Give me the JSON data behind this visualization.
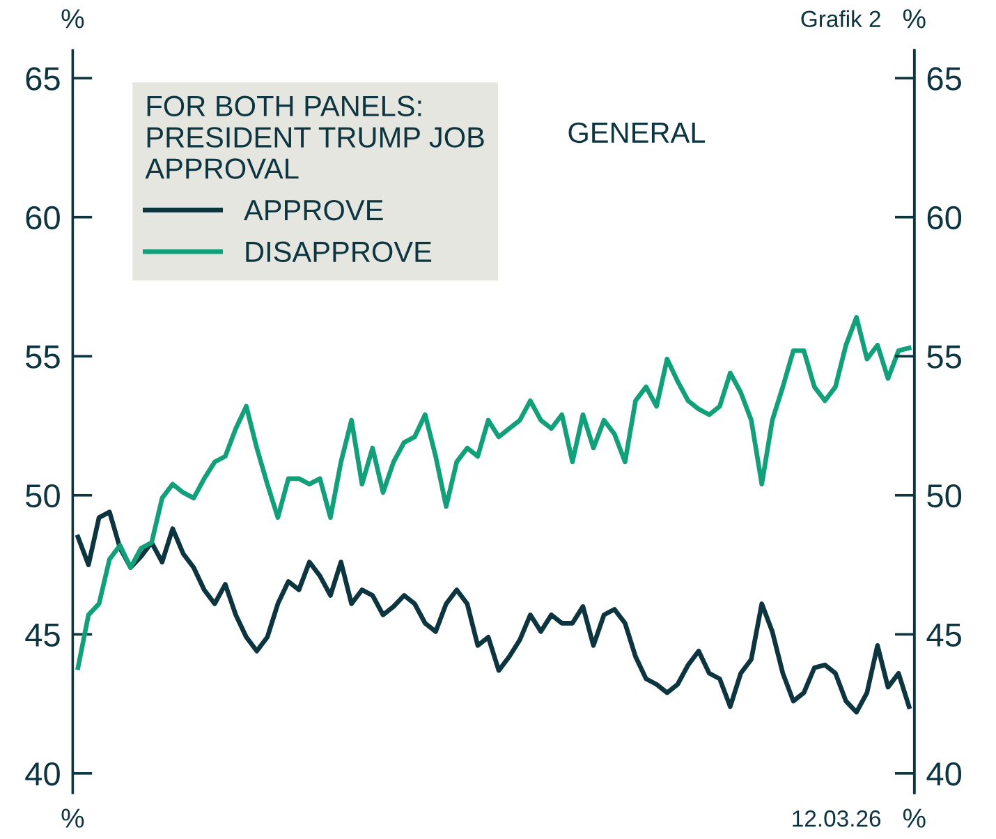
{
  "chart_data": {
    "type": "line",
    "title": "GENERAL",
    "ylabel": "%",
    "y2label": "%",
    "legend_title": "FOR BOTH PANELS:\nPRESIDENT TRUMP JOB\nAPPROVAL",
    "annotations": [
      "Grafik 2",
      "%",
      "%",
      "12.03.26"
    ],
    "categories": [
      null,
      null,
      null,
      null,
      null,
      null,
      null,
      null,
      null,
      null,
      null,
      null,
      null,
      null,
      null,
      null,
      null,
      null,
      null,
      null,
      null,
      null,
      null,
      null,
      null,
      null,
      null,
      null,
      null,
      null,
      null,
      null,
      null,
      null,
      null,
      null,
      null,
      null,
      null,
      null,
      null,
      null,
      null,
      null,
      null,
      null,
      null,
      null,
      null,
      null,
      null,
      null,
      null,
      null,
      null,
      null,
      null,
      null,
      null,
      null,
      null,
      null,
      null,
      null,
      null,
      null,
      null,
      null,
      null,
      null,
      null,
      null,
      null,
      null,
      null,
      null,
      null,
      null,
      null,
      null
    ],
    "series": [
      {
        "name": "APPROVE",
        "color": "#0d3540",
        "values": [
          48.5,
          47.5,
          49.2,
          49.4,
          48.1,
          47.4,
          47.8,
          48.3,
          47.6,
          48.8,
          47.9,
          47.4,
          46.6,
          46.1,
          46.8,
          45.7,
          44.9,
          44.4,
          44.9,
          46.1,
          46.9,
          46.6,
          47.6,
          47.1,
          46.4,
          47.6,
          46.1,
          46.6,
          46.4,
          45.7,
          46.0,
          46.4,
          46.1,
          45.4,
          45.1,
          46.1,
          46.6,
          46.1,
          44.6,
          44.9,
          43.7,
          44.2,
          44.8,
          45.7,
          45.1,
          45.7,
          45.4,
          45.4,
          46.0,
          44.6,
          45.7,
          45.9,
          45.4,
          44.2,
          43.4,
          43.2,
          42.9,
          43.2,
          43.9,
          44.4,
          43.6,
          43.4,
          42.4,
          43.6,
          44.1,
          46.1,
          45.1,
          43.6,
          42.6,
          42.9,
          43.8,
          43.9,
          43.6,
          42.6,
          42.2,
          42.9,
          44.6,
          43.1,
          43.6,
          42.4
        ]
      },
      {
        "name": "DISAPPROVE",
        "color": "#12a07a",
        "values": [
          43.8,
          45.7,
          46.1,
          47.7,
          48.2,
          47.4,
          48.1,
          48.3,
          49.9,
          50.4,
          50.1,
          49.9,
          50.6,
          51.2,
          51.4,
          52.4,
          53.2,
          51.7,
          50.4,
          49.2,
          50.6,
          50.6,
          50.4,
          50.6,
          49.2,
          51.2,
          52.7,
          50.4,
          51.7,
          50.1,
          51.2,
          51.9,
          52.1,
          52.9,
          51.4,
          49.6,
          51.2,
          51.7,
          51.4,
          52.7,
          52.1,
          52.4,
          52.7,
          53.4,
          52.7,
          52.4,
          52.9,
          51.2,
          52.9,
          51.7,
          52.7,
          52.2,
          51.2,
          53.4,
          53.9,
          53.2,
          54.9,
          54.1,
          53.4,
          53.1,
          52.9,
          53.2,
          54.4,
          53.7,
          52.7,
          50.4,
          52.7,
          53.9,
          55.2,
          55.2,
          53.9,
          53.4,
          53.9,
          55.4,
          56.4,
          54.9,
          55.4,
          54.2,
          55.2,
          55.3
        ]
      }
    ],
    "ylim": [
      39.3,
      66
    ],
    "yticks": [
      40,
      45,
      50,
      55,
      60,
      65
    ],
    "y2lim": [
      39.3,
      66
    ],
    "y2ticks": [
      40,
      45,
      50,
      55,
      60,
      65
    ],
    "legend": "top left",
    "grid": false,
    "marker": "none",
    "line_style": "solid"
  }
}
